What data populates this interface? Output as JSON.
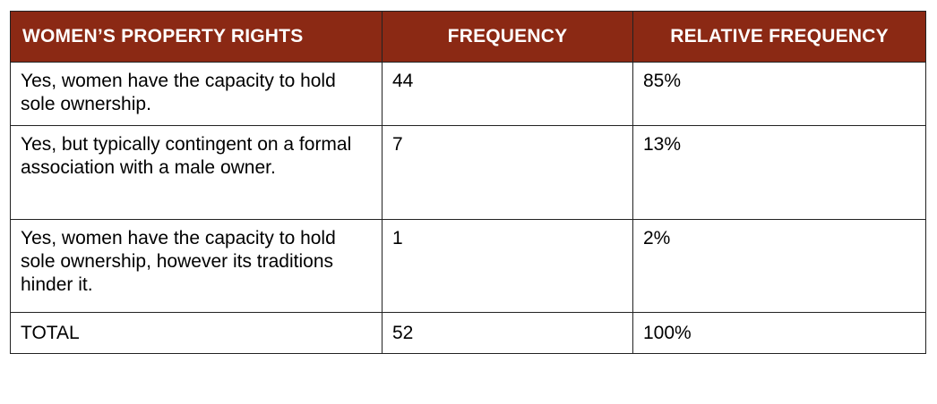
{
  "chart_data": {
    "type": "table",
    "columns": [
      "WOMEN’S PROPERTY RIGHTS",
      "FREQUENCY",
      "RELATIVE FREQUENCY"
    ],
    "rows": [
      {
        "label": "Yes, women have the capacity to hold sole ownership.",
        "frequency": "44",
        "relative_frequency": "85%"
      },
      {
        "label": "Yes, but typically contingent on a formal association with a male owner.",
        "frequency": "7",
        "relative_frequency": "13%"
      },
      {
        "label": "Yes, women have the capacity to hold sole ownership, however its traditions hinder it.",
        "frequency": "1",
        "relative_frequency": "2%"
      },
      {
        "label": "TOTAL",
        "frequency": "52",
        "relative_frequency": "100%"
      }
    ]
  },
  "colors": {
    "header_background": "#8b2914",
    "header_text": "#ffffff",
    "border": "#222222"
  }
}
